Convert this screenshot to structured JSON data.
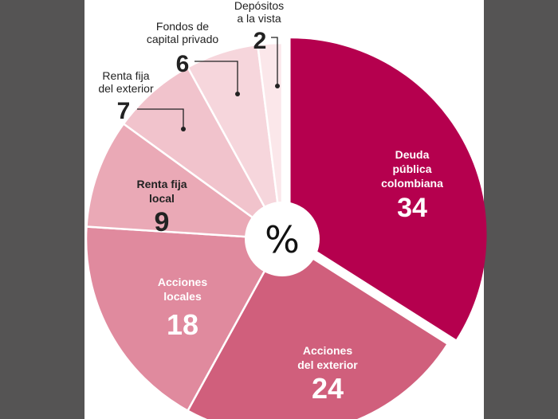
{
  "chart_data": {
    "type": "pie",
    "variant": "donut",
    "center_label": "%",
    "total": 100,
    "colors": {
      "deuda": "#b5004e",
      "acciones_exterior": "#d05f7c",
      "acciones_locales": "#e08a9e",
      "renta_local": "#eaa9b6",
      "renta_exterior": "#f1c3cc",
      "fondos": "#f6d6dc",
      "depositos": "#fbe7ea",
      "background": "#555454",
      "panel": "#ffffff"
    },
    "slices": [
      {
        "key": "deuda",
        "name_lines": [
          "Deuda",
          "pública",
          "colombiana"
        ],
        "value": 34,
        "value_text": "34",
        "color": "#b5004e",
        "label_color": "#ffffff",
        "exploded": true
      },
      {
        "key": "acciones_exterior",
        "name_lines": [
          "Acciones",
          "del exterior"
        ],
        "value": 24,
        "value_text": "24",
        "color": "#d05f7c",
        "label_color": "#ffffff"
      },
      {
        "key": "acciones_locales",
        "name_lines": [
          "Acciones",
          "locales"
        ],
        "value": 18,
        "value_text": "18",
        "color": "#e08a9e",
        "label_color": "#ffffff"
      },
      {
        "key": "renta_local",
        "name_lines": [
          "Renta fija",
          "local"
        ],
        "value": 9,
        "value_text": "9",
        "color": "#eaa9b6",
        "label_color": "#222222"
      },
      {
        "key": "renta_exterior",
        "name_lines": [
          "Renta fija",
          "del exterior"
        ],
        "value": 7,
        "value_text": "7",
        "color": "#f1c3cc",
        "label_color": "#222222",
        "outside": true
      },
      {
        "key": "fondos",
        "name_lines": [
          "Fondos de",
          "capital privado"
        ],
        "value": 6,
        "value_text": "6",
        "color": "#f6d6dc",
        "label_color": "#222222",
        "outside": true
      },
      {
        "key": "depositos",
        "name_lines": [
          "Depósitos",
          "a la vista"
        ],
        "value": 2,
        "value_text": "2",
        "color": "#fbe7ea",
        "label_color": "#222222",
        "outside": true
      }
    ]
  }
}
